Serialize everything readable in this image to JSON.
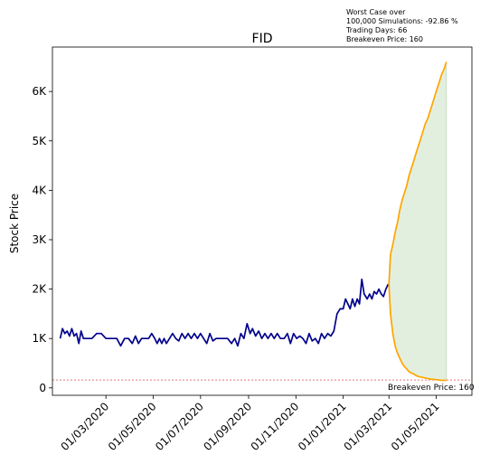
{
  "chart_data": {
    "type": "line",
    "title": "FID",
    "xlabel": "",
    "ylabel": "Stock Price",
    "ylim": [
      -150,
      6900
    ],
    "yticks": [
      {
        "value": 0,
        "label": "0"
      },
      {
        "value": 1000,
        "label": "1K"
      },
      {
        "value": 2000,
        "label": "2K"
      },
      {
        "value": 3000,
        "label": "3K"
      },
      {
        "value": 4000,
        "label": "4K"
      },
      {
        "value": 5000,
        "label": "5K"
      },
      {
        "value": 6000,
        "label": "6K"
      }
    ],
    "xlim": [
      "2019-12-23",
      "2021-06-16"
    ],
    "xticks": [
      {
        "value": "2020-03-01",
        "label": "01/03/2020"
      },
      {
        "value": "2020-05-01",
        "label": "01/05/2020"
      },
      {
        "value": "2020-07-01",
        "label": "01/07/2020"
      },
      {
        "value": "2020-09-01",
        "label": "01/09/2020"
      },
      {
        "value": "2020-11-01",
        "label": "01/11/2020"
      },
      {
        "value": "2021-01-01",
        "label": "01/01/2021"
      },
      {
        "value": "2021-03-01",
        "label": "01/03/2021"
      },
      {
        "value": "2021-05-01",
        "label": "01/05/2021"
      }
    ],
    "grid": false,
    "annotation_lines": [
      "Worst Case over",
      "100,000 Simulations: -92.86 %",
      "Trading Days: 66",
      "Breakeven Price: 160"
    ],
    "breakeven": {
      "value": 160,
      "label": "Breakeven Price: 160",
      "color": "#d62728"
    },
    "series": [
      {
        "color": "#00008b",
        "points": [
          [
            "2020-01-02",
            1000
          ],
          [
            "2020-01-05",
            1200
          ],
          [
            "2020-01-08",
            1100
          ],
          [
            "2020-01-11",
            1150
          ],
          [
            "2020-01-14",
            1050
          ],
          [
            "2020-01-17",
            1200
          ],
          [
            "2020-01-20",
            1050
          ],
          [
            "2020-01-23",
            1100
          ],
          [
            "2020-01-26",
            900
          ],
          [
            "2020-01-29",
            1150
          ],
          [
            "2020-02-01",
            1000
          ],
          [
            "2020-02-06",
            1000
          ],
          [
            "2020-02-12",
            1000
          ],
          [
            "2020-02-18",
            1100
          ],
          [
            "2020-02-24",
            1100
          ],
          [
            "2020-03-01",
            1000
          ],
          [
            "2020-03-08",
            1000
          ],
          [
            "2020-03-15",
            1000
          ],
          [
            "2020-03-20",
            850
          ],
          [
            "2020-03-25",
            1000
          ],
          [
            "2020-03-30",
            1000
          ],
          [
            "2020-04-04",
            900
          ],
          [
            "2020-04-08",
            1050
          ],
          [
            "2020-04-12",
            900
          ],
          [
            "2020-04-16",
            1000
          ],
          [
            "2020-04-20",
            1000
          ],
          [
            "2020-04-25",
            1000
          ],
          [
            "2020-04-29",
            1100
          ],
          [
            "2020-05-03",
            1000
          ],
          [
            "2020-05-06",
            900
          ],
          [
            "2020-05-09",
            1000
          ],
          [
            "2020-05-12",
            900
          ],
          [
            "2020-05-15",
            1000
          ],
          [
            "2020-05-18",
            900
          ],
          [
            "2020-05-22",
            1000
          ],
          [
            "2020-05-26",
            1100
          ],
          [
            "2020-05-30",
            1000
          ],
          [
            "2020-06-03",
            950
          ],
          [
            "2020-06-07",
            1100
          ],
          [
            "2020-06-11",
            1000
          ],
          [
            "2020-06-15",
            1100
          ],
          [
            "2020-06-19",
            1000
          ],
          [
            "2020-06-23",
            1100
          ],
          [
            "2020-06-27",
            1000
          ],
          [
            "2020-07-01",
            1100
          ],
          [
            "2020-07-05",
            1000
          ],
          [
            "2020-07-09",
            900
          ],
          [
            "2020-07-13",
            1100
          ],
          [
            "2020-07-17",
            950
          ],
          [
            "2020-07-21",
            1000
          ],
          [
            "2020-07-26",
            1000
          ],
          [
            "2020-07-31",
            1000
          ],
          [
            "2020-08-05",
            1000
          ],
          [
            "2020-08-10",
            900
          ],
          [
            "2020-08-14",
            1000
          ],
          [
            "2020-08-18",
            850
          ],
          [
            "2020-08-22",
            1100
          ],
          [
            "2020-08-26",
            1000
          ],
          [
            "2020-08-30",
            1300
          ],
          [
            "2020-09-03",
            1100
          ],
          [
            "2020-09-06",
            1200
          ],
          [
            "2020-09-10",
            1050
          ],
          [
            "2020-09-14",
            1150
          ],
          [
            "2020-09-18",
            1000
          ],
          [
            "2020-09-22",
            1100
          ],
          [
            "2020-09-26",
            1000
          ],
          [
            "2020-09-30",
            1100
          ],
          [
            "2020-10-04",
            1000
          ],
          [
            "2020-10-08",
            1100
          ],
          [
            "2020-10-12",
            1000
          ],
          [
            "2020-10-17",
            1000
          ],
          [
            "2020-10-21",
            1100
          ],
          [
            "2020-10-25",
            900
          ],
          [
            "2020-10-29",
            1100
          ],
          [
            "2020-11-02",
            1000
          ],
          [
            "2020-11-06",
            1050
          ],
          [
            "2020-11-10",
            1000
          ],
          [
            "2020-11-14",
            900
          ],
          [
            "2020-11-18",
            1100
          ],
          [
            "2020-11-22",
            950
          ],
          [
            "2020-11-26",
            1000
          ],
          [
            "2020-11-30",
            900
          ],
          [
            "2020-12-04",
            1100
          ],
          [
            "2020-12-08",
            1000
          ],
          [
            "2020-12-12",
            1100
          ],
          [
            "2020-12-16",
            1050
          ],
          [
            "2020-12-20",
            1150
          ],
          [
            "2020-12-24",
            1500
          ],
          [
            "2020-12-28",
            1600
          ],
          [
            "2021-01-01",
            1600
          ],
          [
            "2021-01-04",
            1800
          ],
          [
            "2021-01-07",
            1700
          ],
          [
            "2021-01-10",
            1600
          ],
          [
            "2021-01-13",
            1800
          ],
          [
            "2021-01-16",
            1650
          ],
          [
            "2021-01-19",
            1800
          ],
          [
            "2021-01-22",
            1700
          ],
          [
            "2021-01-25",
            2200
          ],
          [
            "2021-01-28",
            1900
          ],
          [
            "2021-02-01",
            1800
          ],
          [
            "2021-02-04",
            1900
          ],
          [
            "2021-02-07",
            1800
          ],
          [
            "2021-02-10",
            1950
          ],
          [
            "2021-02-13",
            1900
          ],
          [
            "2021-02-16",
            2000
          ],
          [
            "2021-02-19",
            1900
          ],
          [
            "2021-02-22",
            1850
          ],
          [
            "2021-02-25",
            2000
          ],
          [
            "2021-02-28",
            2100
          ]
        ]
      },
      {
        "color": "#ffa500",
        "points": [
          [
            "2021-03-01",
            2100
          ],
          [
            "2021-03-03",
            2700
          ],
          [
            "2021-03-06",
            2900
          ],
          [
            "2021-03-09",
            3150
          ],
          [
            "2021-03-12",
            3350
          ],
          [
            "2021-03-15",
            3600
          ],
          [
            "2021-03-18",
            3800
          ],
          [
            "2021-03-21",
            3950
          ],
          [
            "2021-03-24",
            4100
          ],
          [
            "2021-03-27",
            4300
          ],
          [
            "2021-03-30",
            4450
          ],
          [
            "2021-04-02",
            4600
          ],
          [
            "2021-04-05",
            4750
          ],
          [
            "2021-04-08",
            4900
          ],
          [
            "2021-04-11",
            5050
          ],
          [
            "2021-04-14",
            5200
          ],
          [
            "2021-04-17",
            5350
          ],
          [
            "2021-04-20",
            5450
          ],
          [
            "2021-04-23",
            5600
          ],
          [
            "2021-04-26",
            5750
          ],
          [
            "2021-04-29",
            5900
          ],
          [
            "2021-05-02",
            6050
          ],
          [
            "2021-05-05",
            6200
          ],
          [
            "2021-05-08",
            6350
          ],
          [
            "2021-05-11",
            6450
          ],
          [
            "2021-05-14",
            6600
          ]
        ]
      },
      {
        "color": "#ffa500",
        "points": [
          [
            "2021-03-01",
            2100
          ],
          [
            "2021-03-03",
            1500
          ],
          [
            "2021-03-06",
            1100
          ],
          [
            "2021-03-09",
            850
          ],
          [
            "2021-03-12",
            700
          ],
          [
            "2021-03-15",
            600
          ],
          [
            "2021-03-18",
            500
          ],
          [
            "2021-03-21",
            430
          ],
          [
            "2021-03-24",
            380
          ],
          [
            "2021-03-27",
            330
          ],
          [
            "2021-03-30",
            300
          ],
          [
            "2021-04-02",
            280
          ],
          [
            "2021-04-05",
            250
          ],
          [
            "2021-04-08",
            230
          ],
          [
            "2021-04-11",
            220
          ],
          [
            "2021-04-14",
            210
          ],
          [
            "2021-04-17",
            200
          ],
          [
            "2021-04-20",
            190
          ],
          [
            "2021-04-23",
            180
          ],
          [
            "2021-04-26",
            175
          ],
          [
            "2021-04-29",
            170
          ],
          [
            "2021-05-02",
            165
          ],
          [
            "2021-05-05",
            160
          ],
          [
            "2021-05-08",
            150
          ],
          [
            "2021-05-11",
            155
          ],
          [
            "2021-05-14",
            150
          ]
        ]
      }
    ],
    "fill": {
      "color": "#d9ead3",
      "between": [
        1,
        2
      ]
    }
  }
}
